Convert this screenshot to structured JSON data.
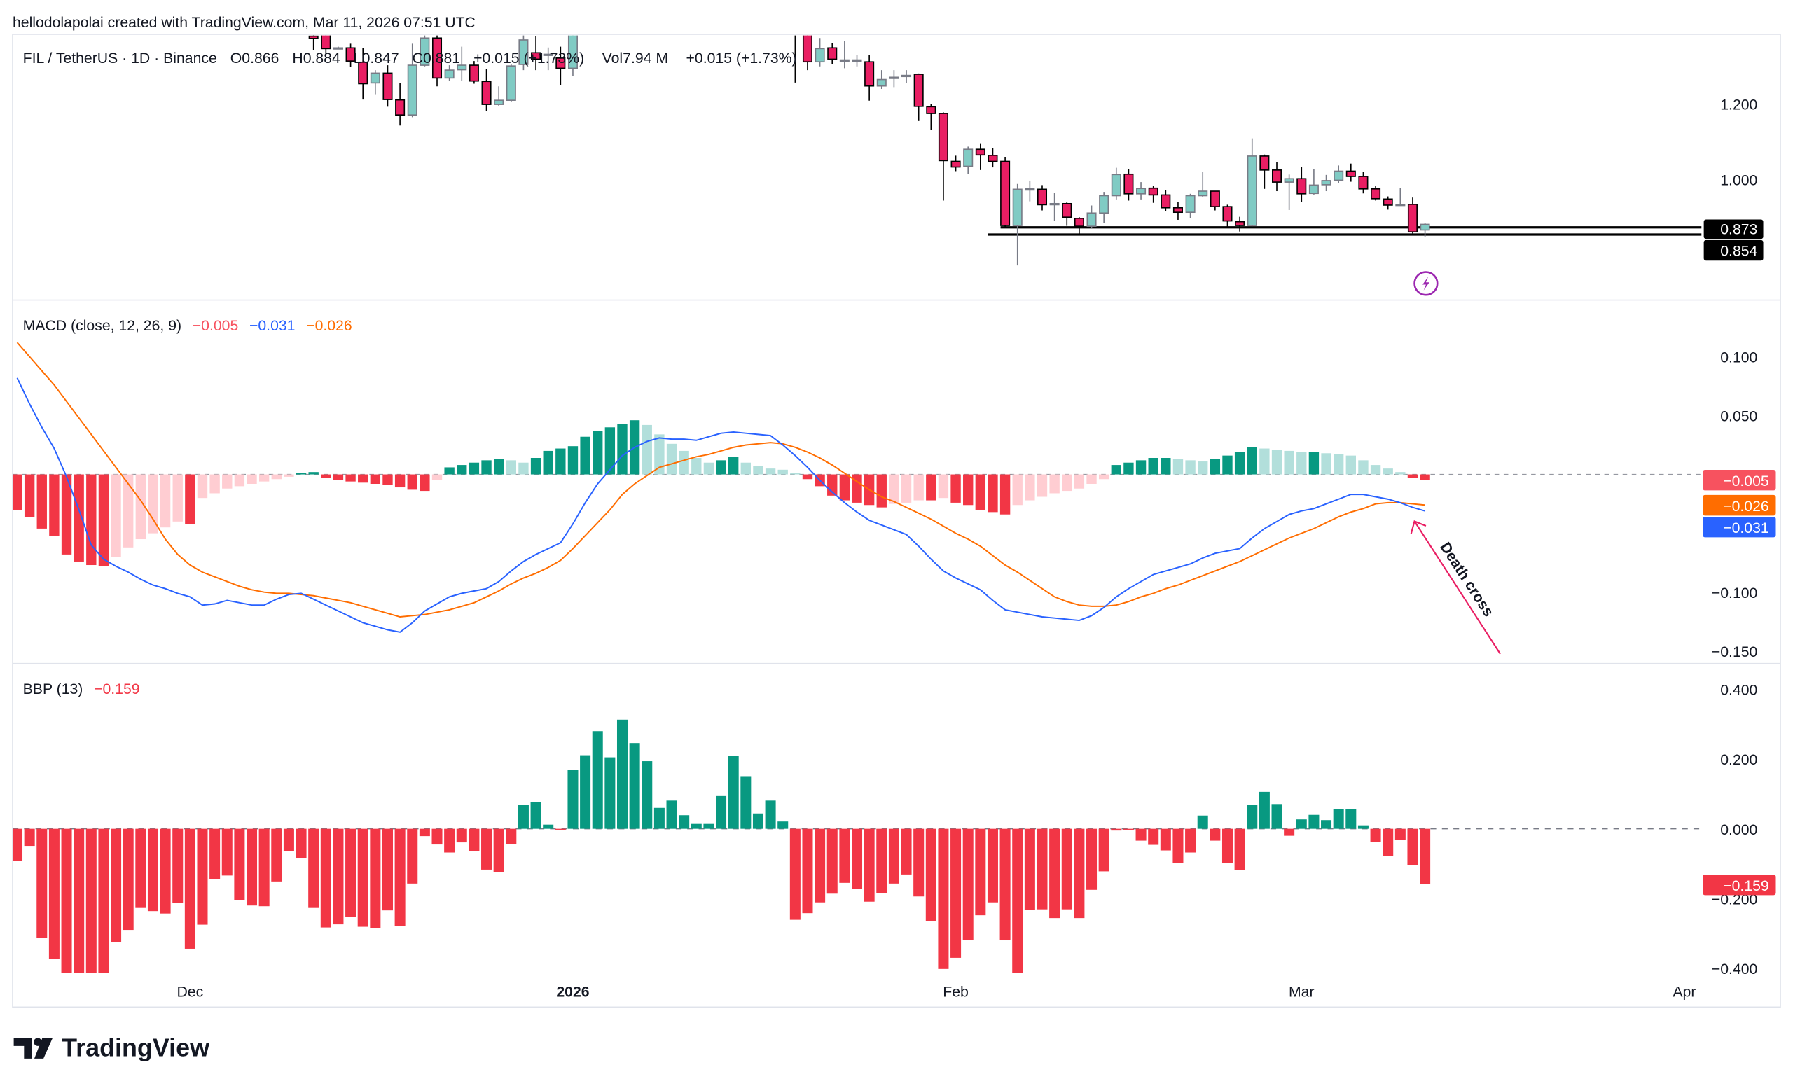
{
  "attribution": "hellodolapolai created with TradingView.com, Mar 11, 2026 07:51 UTC",
  "legend": {
    "symbol": "FIL / TetherUS · 1D · Binance",
    "open_label": "O",
    "open": "0.866",
    "high_label": "H",
    "high": "0.884",
    "low_label": "L",
    "low": "0.847",
    "close_label": "C",
    "close": "0.881",
    "change": "+0.015 (+1.73%)",
    "vol_label": "Vol",
    "vol": "7.94 M",
    "change2": "+0.015 (+1.73%)"
  },
  "price_axis": {
    "ticks": [
      "1.200",
      "1.000"
    ],
    "labels": [
      {
        "text": "0.873",
        "color": "#000000"
      },
      {
        "text": "0.854",
        "color": "#000000"
      }
    ]
  },
  "macd": {
    "title": "MACD (close, 12, 26, 9)",
    "hist_value": "−0.005",
    "macd_value": "−0.031",
    "signal_value": "−0.026",
    "ticks": [
      "0.100",
      "0.050",
      "−0.100",
      "−0.150"
    ],
    "colors": {
      "hist": "#F7525F",
      "macd": "#2962FF",
      "signal": "#FF6D00"
    }
  },
  "bbp": {
    "title": "BBP (13)",
    "value": "−0.159",
    "ticks": [
      "0.400",
      "0.200",
      "0.000",
      "−0.200",
      "−0.400"
    ],
    "color": "#F23645"
  },
  "time_axis": [
    {
      "label": "Dec",
      "date": "2025-12-01"
    },
    {
      "label": "2026",
      "date": "2026-01-01"
    },
    {
      "label": "Feb",
      "date": "2026-02-01"
    },
    {
      "label": "Mar",
      "date": "2026-03-01"
    },
    {
      "label": "Apr",
      "date": "2026-04-01"
    }
  ],
  "annotation": "Death cross",
  "logo": "TradingView",
  "alert_icon": "lightning-bolt-icon",
  "colors": {
    "up_body": "#80CBC4",
    "up_border": "#787B86",
    "down_body": "#E91E63",
    "down_border": "#000000",
    "hist_pos_strong": "#089981",
    "hist_pos_weak": "#B2DFDB",
    "hist_neg_strong": "#F23645",
    "hist_neg_weak": "#FFCDD2",
    "bbp_pos": "#089981",
    "bbp_neg": "#F23645",
    "annotation": "#E91E63",
    "alert": "#9C27B0"
  },
  "chart_data": {
    "type": "candlestick",
    "title": "FIL / TetherUS · 1D · Binance",
    "ylim": [
      0.76,
      1.385
    ],
    "x": [
      "2025-11-17",
      "2025-11-18",
      "2025-11-19",
      "2025-11-20",
      "2025-11-21",
      "2025-11-22",
      "2025-11-23",
      "2025-11-24",
      "2025-11-25",
      "2025-11-26",
      "2025-11-27",
      "2025-11-28",
      "2025-11-29",
      "2025-11-30",
      "2025-12-01",
      "2025-12-02",
      "2025-12-03",
      "2025-12-04",
      "2025-12-05",
      "2025-12-06",
      "2025-12-07",
      "2025-12-08",
      "2025-12-09",
      "2025-12-10",
      "2025-12-11",
      "2025-12-12",
      "2025-12-13",
      "2025-12-14",
      "2025-12-15",
      "2025-12-16",
      "2025-12-17",
      "2025-12-18",
      "2025-12-19",
      "2025-12-20",
      "2025-12-21",
      "2025-12-22",
      "2025-12-23",
      "2025-12-24",
      "2025-12-25",
      "2025-12-26",
      "2025-12-27",
      "2025-12-28",
      "2025-12-29",
      "2025-12-30",
      "2025-12-31",
      "2026-01-01",
      "2026-01-02",
      "2026-01-03",
      "2026-01-04",
      "2026-01-05",
      "2026-01-06",
      "2026-01-07",
      "2026-01-08",
      "2026-01-09",
      "2026-01-10",
      "2026-01-11",
      "2026-01-12",
      "2026-01-13",
      "2026-01-14",
      "2026-01-15",
      "2026-01-16",
      "2026-01-17",
      "2026-01-18",
      "2026-01-19",
      "2026-01-20",
      "2026-01-21",
      "2026-01-22",
      "2026-01-23",
      "2026-01-24",
      "2026-01-25",
      "2026-01-26",
      "2026-01-27",
      "2026-01-28",
      "2026-01-29",
      "2026-01-30",
      "2026-01-31",
      "2026-02-01",
      "2026-02-02",
      "2026-02-03",
      "2026-02-04",
      "2026-02-05",
      "2026-02-06",
      "2026-02-07",
      "2026-02-08",
      "2026-02-09",
      "2026-02-10",
      "2026-02-11",
      "2026-02-12",
      "2026-02-13",
      "2026-02-14",
      "2026-02-15",
      "2026-02-16",
      "2026-02-17",
      "2026-02-18",
      "2026-02-19",
      "2026-02-20",
      "2026-02-21",
      "2026-02-22",
      "2026-02-23",
      "2026-02-24",
      "2026-02-25",
      "2026-02-26",
      "2026-02-27",
      "2026-02-28",
      "2026-03-01",
      "2026-03-02",
      "2026-03-03",
      "2026-03-04",
      "2026-03-05",
      "2026-03-06",
      "2026-03-07",
      "2026-03-08",
      "2026-03-09",
      "2026-03-10",
      "2026-03-11"
    ],
    "ohlc": [
      null,
      null,
      null,
      null,
      null,
      null,
      null,
      null,
      null,
      null,
      null,
      null,
      null,
      null,
      null,
      null,
      null,
      null,
      null,
      null,
      null,
      null,
      null,
      null,
      [
        1.38,
        1.392,
        1.343,
        1.374
      ],
      [
        1.385,
        1.392,
        1.332,
        1.347
      ],
      [
        1.349,
        1.352,
        1.345,
        1.349
      ],
      [
        1.349,
        1.36,
        1.299,
        1.314
      ],
      [
        1.311,
        1.349,
        1.212,
        1.254
      ],
      [
        1.256,
        1.29,
        1.226,
        1.282
      ],
      [
        1.282,
        1.303,
        1.193,
        1.212
      ],
      [
        1.211,
        1.256,
        1.143,
        1.171
      ],
      [
        1.171,
        1.36,
        1.165,
        1.303
      ],
      [
        1.303,
        1.392,
        1.3,
        1.375
      ],
      [
        1.375,
        1.385,
        1.247,
        1.269
      ],
      [
        1.269,
        1.303,
        1.261,
        1.29
      ],
      [
        1.291,
        1.352,
        1.261,
        1.303
      ],
      [
        1.303,
        1.314,
        1.254,
        1.261
      ],
      [
        1.26,
        1.293,
        1.182,
        1.199
      ],
      [
        1.199,
        1.247,
        1.195,
        1.21
      ],
      [
        1.21,
        1.306,
        1.205,
        1.301
      ],
      [
        1.305,
        1.392,
        1.29,
        1.37
      ],
      [
        1.336,
        1.38,
        1.29,
        1.319
      ],
      [
        1.33,
        1.35,
        1.29,
        1.332
      ],
      [
        1.322,
        1.352,
        1.251,
        1.295
      ],
      [
        1.295,
        1.4,
        1.275,
        1.387
      ],
      null,
      null,
      null,
      null,
      null,
      null,
      null,
      null,
      null,
      null,
      null,
      null,
      null,
      null,
      null,
      null,
      null,
      [
        1.47,
        1.5,
        1.257,
        1.44
      ],
      [
        1.4,
        1.42,
        1.29,
        1.312
      ],
      [
        1.312,
        1.375,
        1.3,
        1.347
      ],
      [
        1.349,
        1.362,
        1.305,
        1.319
      ],
      [
        1.316,
        1.368,
        1.295,
        1.317
      ],
      [
        1.316,
        1.33,
        1.3,
        1.317
      ],
      [
        1.312,
        1.33,
        1.209,
        1.248
      ],
      [
        1.248,
        1.29,
        1.24,
        1.265
      ],
      [
        1.27,
        1.29,
        1.245,
        1.271
      ],
      [
        1.274,
        1.29,
        1.255,
        1.276
      ],
      [
        1.279,
        1.281,
        1.155,
        1.194
      ],
      [
        1.193,
        1.2,
        1.132,
        1.175
      ],
      [
        1.175,
        1.178,
        0.944,
        1.05
      ],
      [
        1.048,
        1.063,
        1.022,
        1.033
      ],
      [
        1.035,
        1.087,
        1.015,
        1.08
      ],
      [
        1.08,
        1.096,
        1.025,
        1.065
      ],
      [
        1.064,
        1.083,
        1.032,
        1.048
      ],
      [
        1.048,
        1.06,
        0.873,
        0.878
      ],
      [
        0.878,
        0.988,
        0.772,
        0.974
      ],
      [
        0.975,
        0.997,
        0.942,
        0.975
      ],
      [
        0.974,
        0.985,
        0.918,
        0.933
      ],
      [
        0.935,
        0.964,
        0.89,
        0.936
      ],
      [
        0.936,
        0.941,
        0.877,
        0.9
      ],
      [
        0.897,
        0.9,
        0.855,
        0.876
      ],
      [
        0.876,
        0.931,
        0.872,
        0.911
      ],
      [
        0.911,
        0.967,
        0.885,
        0.957
      ],
      [
        0.957,
        1.031,
        0.947,
        1.013
      ],
      [
        1.014,
        1.028,
        0.944,
        0.962
      ],
      [
        0.962,
        0.993,
        0.947,
        0.976
      ],
      [
        0.977,
        0.982,
        0.938,
        0.959
      ],
      [
        0.959,
        0.971,
        0.917,
        0.925
      ],
      [
        0.925,
        0.94,
        0.893,
        0.913
      ],
      [
        0.913,
        0.962,
        0.898,
        0.957
      ],
      [
        0.957,
        1.021,
        0.953,
        0.969
      ],
      [
        0.969,
        0.97,
        0.918,
        0.928
      ],
      [
        0.928,
        0.933,
        0.874,
        0.89
      ],
      [
        0.888,
        0.901,
        0.862,
        0.878
      ],
      [
        0.878,
        1.109,
        0.876,
        1.062
      ],
      [
        1.062,
        1.066,
        0.975,
        1.025
      ],
      [
        1.025,
        1.046,
        0.969,
        0.993
      ],
      [
        0.993,
        1.013,
        0.919,
        1.002
      ],
      [
        1.002,
        1.033,
        0.94,
        0.962
      ],
      [
        0.963,
        1.028,
        0.96,
        0.985
      ],
      [
        0.986,
        1.012,
        0.969,
        0.997
      ],
      [
        0.998,
        1.037,
        0.991,
        1.022
      ],
      [
        1.022,
        1.042,
        0.994,
        1.008
      ],
      [
        1.008,
        1.021,
        0.963,
        0.975
      ],
      [
        0.975,
        0.982,
        0.944,
        0.949
      ],
      [
        0.948,
        0.955,
        0.92,
        0.932
      ],
      [
        0.933,
        0.977,
        0.93,
        0.934
      ],
      [
        0.934,
        0.952,
        0.857,
        0.861
      ],
      [
        0.866,
        0.884,
        0.847,
        0.881
      ]
    ],
    "horizontal_lines": [
      {
        "price": 0.873,
        "from": "2026-02-05"
      },
      {
        "price": 0.854,
        "from": "2026-02-04"
      }
    ],
    "macd": {
      "ylim": [
        -0.16,
        0.145
      ],
      "histogram": [
        -0.03,
        -0.036,
        -0.046,
        -0.052,
        -0.068,
        -0.074,
        -0.077,
        -0.078,
        -0.07,
        -0.062,
        -0.055,
        -0.05,
        -0.045,
        -0.04,
        -0.042,
        -0.02,
        -0.016,
        -0.012,
        -0.01,
        -0.008,
        -0.006,
        -0.004,
        -0.002,
        0.001,
        0.002,
        -0.003,
        -0.005,
        -0.006,
        -0.007,
        -0.008,
        -0.009,
        -0.011,
        -0.013,
        -0.014,
        -0.005,
        0.006,
        0.008,
        0.01,
        0.012,
        0.013,
        0.012,
        0.01,
        0.014,
        0.02,
        0.022,
        0.024,
        0.032,
        0.037,
        0.04,
        0.043,
        0.046,
        0.042,
        0.034,
        0.026,
        0.02,
        0.014,
        0.01,
        0.012,
        0.015,
        0.01,
        0.007,
        0.005,
        0.004,
        0.001,
        -0.004,
        -0.01,
        -0.018,
        -0.022,
        -0.024,
        -0.026,
        -0.028,
        -0.025,
        -0.024,
        -0.022,
        -0.022,
        -0.02,
        -0.024,
        -0.026,
        -0.03,
        -0.032,
        -0.034,
        -0.026,
        -0.022,
        -0.019,
        -0.016,
        -0.014,
        -0.012,
        -0.008,
        -0.004,
        0.008,
        0.01,
        0.012,
        0.014,
        0.014,
        0.013,
        0.012,
        0.011,
        0.013,
        0.016,
        0.019,
        0.023,
        0.022,
        0.021,
        0.02,
        0.019,
        0.019,
        0.018,
        0.017,
        0.016,
        0.012,
        0.008,
        0.005,
        0.002,
        -0.003,
        -0.005
      ],
      "macd": [
        0.082,
        0.06,
        0.04,
        0.022,
        -0.002,
        -0.03,
        -0.06,
        -0.072,
        -0.078,
        -0.083,
        -0.089,
        -0.094,
        -0.097,
        -0.101,
        -0.104,
        -0.111,
        -0.11,
        -0.107,
        -0.109,
        -0.111,
        -0.111,
        -0.106,
        -0.102,
        -0.101,
        -0.106,
        -0.111,
        -0.116,
        -0.121,
        -0.126,
        -0.129,
        -0.132,
        -0.134,
        -0.126,
        -0.116,
        -0.11,
        -0.104,
        -0.101,
        -0.099,
        -0.097,
        -0.091,
        -0.082,
        -0.074,
        -0.068,
        -0.063,
        -0.058,
        -0.042,
        -0.024,
        -0.008,
        0.004,
        0.016,
        0.023,
        0.028,
        0.031,
        0.03,
        0.03,
        0.029,
        0.032,
        0.035,
        0.036,
        0.035,
        0.034,
        0.033,
        0.025,
        0.016,
        0.006,
        -0.005,
        -0.015,
        -0.024,
        -0.032,
        -0.039,
        -0.043,
        -0.047,
        -0.051,
        -0.061,
        -0.072,
        -0.082,
        -0.088,
        -0.093,
        -0.098,
        -0.107,
        -0.115,
        -0.117,
        -0.119,
        -0.121,
        -0.122,
        -0.123,
        -0.124,
        -0.12,
        -0.113,
        -0.104,
        -0.097,
        -0.091,
        -0.085,
        -0.082,
        -0.079,
        -0.076,
        -0.071,
        -0.067,
        -0.065,
        -0.063,
        -0.054,
        -0.046,
        -0.04,
        -0.034,
        -0.031,
        -0.029,
        -0.025,
        -0.021,
        -0.017,
        -0.017,
        -0.019,
        -0.021,
        -0.024,
        -0.028,
        -0.031
      ],
      "signal": [
        0.112,
        0.1,
        0.088,
        0.076,
        0.062,
        0.048,
        0.034,
        0.02,
        0.006,
        -0.008,
        -0.022,
        -0.038,
        -0.055,
        -0.068,
        -0.077,
        -0.083,
        -0.087,
        -0.091,
        -0.095,
        -0.098,
        -0.1,
        -0.101,
        -0.101,
        -0.102,
        -0.103,
        -0.105,
        -0.107,
        -0.109,
        -0.112,
        -0.115,
        -0.118,
        -0.121,
        -0.12,
        -0.119,
        -0.117,
        -0.115,
        -0.112,
        -0.109,
        -0.104,
        -0.099,
        -0.093,
        -0.088,
        -0.084,
        -0.079,
        -0.073,
        -0.063,
        -0.052,
        -0.041,
        -0.03,
        -0.017,
        -0.008,
        -0.001,
        0.006,
        0.009,
        0.012,
        0.015,
        0.017,
        0.02,
        0.023,
        0.025,
        0.026,
        0.027,
        0.026,
        0.023,
        0.019,
        0.014,
        0.008,
        0.001,
        -0.006,
        -0.013,
        -0.019,
        -0.023,
        -0.028,
        -0.033,
        -0.038,
        -0.044,
        -0.05,
        -0.055,
        -0.061,
        -0.069,
        -0.077,
        -0.083,
        -0.09,
        -0.097,
        -0.104,
        -0.108,
        -0.111,
        -0.112,
        -0.112,
        -0.111,
        -0.108,
        -0.104,
        -0.101,
        -0.097,
        -0.094,
        -0.09,
        -0.086,
        -0.082,
        -0.078,
        -0.074,
        -0.069,
        -0.064,
        -0.059,
        -0.054,
        -0.05,
        -0.046,
        -0.041,
        -0.036,
        -0.032,
        -0.029,
        -0.025,
        -0.024,
        -0.024,
        -0.025,
        -0.026
      ]
    },
    "bbp": {
      "ylim": [
        -0.41,
        0.43
      ],
      "values": [
        -0.093,
        -0.049,
        -0.313,
        -0.373,
        -0.45,
        -0.45,
        -0.43,
        -0.42,
        -0.324,
        -0.29,
        -0.227,
        -0.236,
        -0.243,
        -0.212,
        -0.344,
        -0.275,
        -0.145,
        -0.134,
        -0.204,
        -0.22,
        -0.222,
        -0.151,
        -0.064,
        -0.084,
        -0.227,
        -0.283,
        -0.274,
        -0.253,
        -0.281,
        -0.285,
        -0.234,
        -0.279,
        -0.157,
        -0.021,
        -0.045,
        -0.068,
        -0.039,
        -0.064,
        -0.117,
        -0.125,
        -0.043,
        0.069,
        0.077,
        0.012,
        -0.002,
        0.168,
        0.211,
        0.28,
        0.205,
        0.313,
        0.246,
        0.194,
        0.06,
        0.081,
        0.039,
        0.014,
        0.014,
        0.094,
        0.21,
        0.151,
        0.044,
        0.081,
        0.021,
        -0.261,
        -0.242,
        -0.211,
        -0.186,
        -0.155,
        -0.172,
        -0.209,
        -0.185,
        -0.157,
        -0.131,
        -0.194,
        -0.265,
        -0.402,
        -0.37,
        -0.32,
        -0.248,
        -0.211,
        -0.32,
        -0.42,
        -0.233,
        -0.231,
        -0.256,
        -0.231,
        -0.256,
        -0.175,
        -0.122,
        -0.005,
        -0.002,
        -0.034,
        -0.046,
        -0.062,
        -0.099,
        -0.068,
        0.038,
        -0.034,
        -0.098,
        -0.118,
        0.069,
        0.106,
        0.071,
        -0.02,
        0.027,
        0.04,
        0.025,
        0.057,
        0.057,
        0.01,
        -0.038,
        -0.077,
        -0.032,
        -0.104,
        -0.159
      ]
    }
  }
}
